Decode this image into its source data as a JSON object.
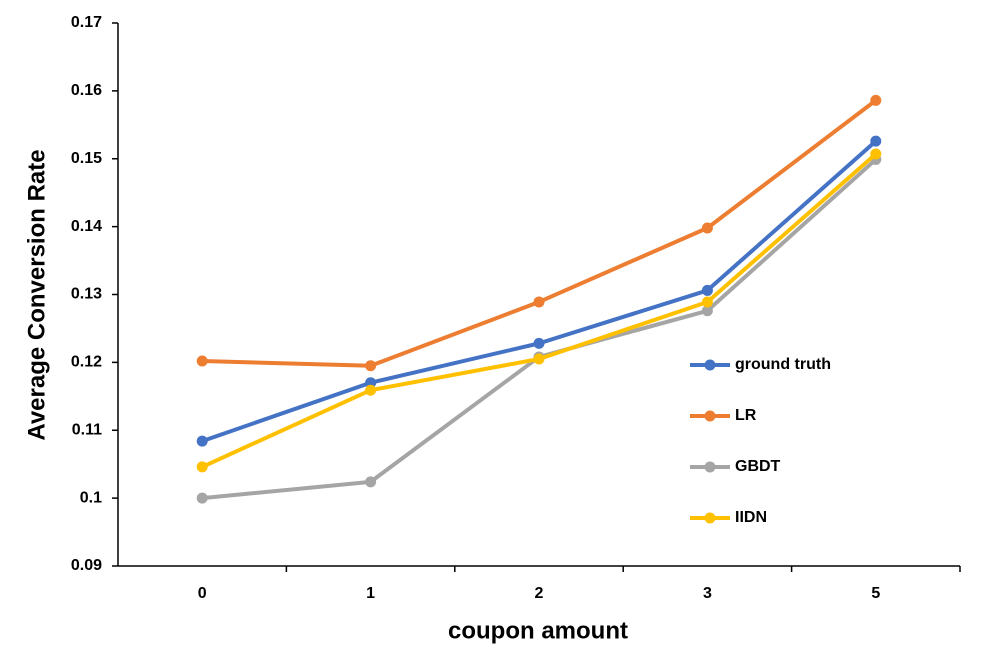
{
  "chart_data": {
    "type": "line",
    "x_label": "coupon amount",
    "y_label": "Average Conversion Rate",
    "categories": [
      "0",
      "1",
      "2",
      "3",
      "5"
    ],
    "series": [
      {
        "name": "ground truth",
        "color": "#4472c4",
        "values": [
          0.1084,
          0.117,
          0.1228,
          0.1306,
          0.1526
        ]
      },
      {
        "name": "LR",
        "color": "#ed7d31",
        "values": [
          0.1202,
          0.1195,
          0.1289,
          0.1398,
          0.1586
        ]
      },
      {
        "name": "GBDT",
        "color": "#a5a5a5",
        "values": [
          0.1,
          0.1024,
          0.1208,
          0.1276,
          0.1499
        ]
      },
      {
        "name": "IIDN",
        "color": "#ffc000",
        "values": [
          0.1046,
          0.1159,
          0.1205,
          0.1289,
          0.1507
        ]
      }
    ],
    "ylim": [
      0.09,
      0.17
    ],
    "yticks": [
      0.09,
      0.1,
      0.11,
      0.12,
      0.13,
      0.14,
      0.15,
      0.16,
      0.17
    ],
    "grid": false,
    "legend": "right"
  }
}
